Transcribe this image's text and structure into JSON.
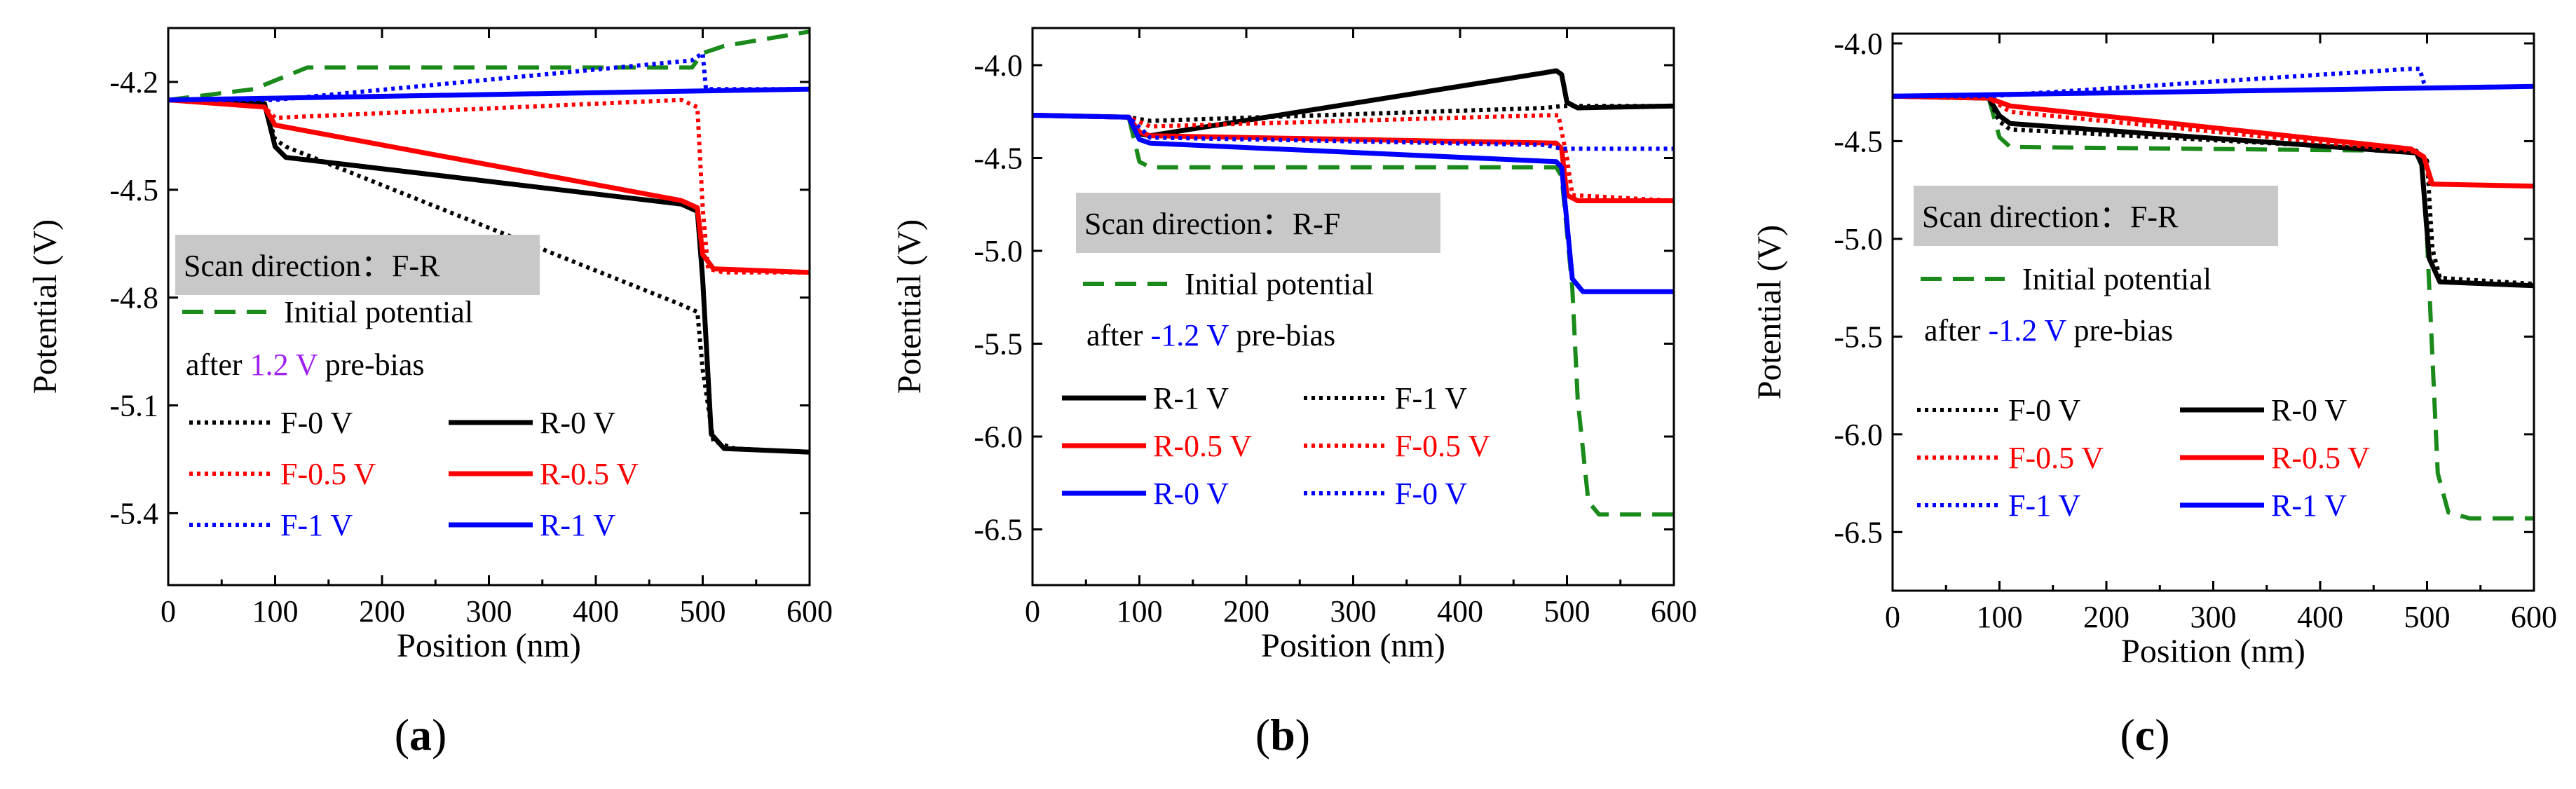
{
  "chart_data": [
    {
      "id": "a",
      "type": "line",
      "caption": "(a)",
      "caption_parts": [
        "(",
        "a",
        ")"
      ],
      "xlabel": "Position (nm)",
      "ylabel": "Potential (V)",
      "xlim": [
        0,
        600
      ],
      "ylim": [
        -5.6,
        -4.05
      ],
      "xticks": [
        "0",
        "100",
        "200",
        "300",
        "400",
        "500",
        "600"
      ],
      "yticks": [
        {
          "label": "-4.2",
          "value": -4.2
        },
        {
          "label": "-4.5",
          "value": -4.5
        },
        {
          "label": "-4.8",
          "value": -4.8
        },
        {
          "label": "-5.1",
          "value": -5.1
        },
        {
          "label": "-5.4",
          "value": -5.4
        }
      ],
      "annotation": {
        "scan": "Scan direction：F-R",
        "initial": "Initial potential",
        "bias_prefix": "after ",
        "bias_value": "1.2 V",
        "bias_suffix": " pre-bias",
        "bias_color": "#a020f0"
      },
      "series": [
        {
          "name": "Initial potential",
          "color": "#1a8a1a",
          "style": "dash",
          "points": [
            [
              0,
              -4.25
            ],
            [
              80,
              -4.22
            ],
            [
              130,
              -4.16
            ],
            [
              490,
              -4.16
            ],
            [
              500,
              -4.12
            ],
            [
              520,
              -4.1
            ],
            [
              600,
              -4.06
            ]
          ]
        },
        {
          "name": "F-0 V",
          "color": "#000000",
          "style": "dot",
          "points": [
            [
              0,
              -4.25
            ],
            [
              90,
              -4.26
            ],
            [
              100,
              -4.36
            ],
            [
              110,
              -4.38
            ],
            [
              480,
              -4.82
            ],
            [
              495,
              -4.84
            ],
            [
              500,
              -5.0
            ],
            [
              510,
              -5.2
            ],
            [
              530,
              -5.22
            ],
            [
              600,
              -5.23
            ]
          ]
        },
        {
          "name": "R-0 V",
          "color": "#000000",
          "style": "solid",
          "points": [
            [
              0,
              -4.25
            ],
            [
              90,
              -4.26
            ],
            [
              100,
              -4.38
            ],
            [
              110,
              -4.41
            ],
            [
              480,
              -4.54
            ],
            [
              495,
              -4.56
            ],
            [
              500,
              -4.75
            ],
            [
              508,
              -5.18
            ],
            [
              520,
              -5.22
            ],
            [
              600,
              -5.23
            ]
          ]
        },
        {
          "name": "F-0.5 V",
          "color": "#ff0000",
          "style": "dot",
          "points": [
            [
              0,
              -4.25
            ],
            [
              90,
              -4.27
            ],
            [
              100,
              -4.3
            ],
            [
              480,
              -4.25
            ],
            [
              495,
              -4.27
            ],
            [
              500,
              -4.55
            ],
            [
              505,
              -4.72
            ],
            [
              520,
              -4.73
            ],
            [
              600,
              -4.73
            ]
          ]
        },
        {
          "name": "R-0.5 V",
          "color": "#ff0000",
          "style": "solid",
          "points": [
            [
              0,
              -4.25
            ],
            [
              90,
              -4.27
            ],
            [
              100,
              -4.32
            ],
            [
              480,
              -4.53
            ],
            [
              495,
              -4.55
            ],
            [
              500,
              -4.68
            ],
            [
              510,
              -4.72
            ],
            [
              600,
              -4.73
            ]
          ]
        },
        {
          "name": "F-1 V",
          "color": "#0000ff",
          "style": "dot",
          "points": [
            [
              0,
              -4.25
            ],
            [
              100,
              -4.25
            ],
            [
              490,
              -4.14
            ],
            [
              500,
              -4.12
            ],
            [
              503,
              -4.22
            ],
            [
              600,
              -4.22
            ]
          ]
        },
        {
          "name": "R-1 V",
          "color": "#0000ff",
          "style": "solid",
          "points": [
            [
              0,
              -4.25
            ],
            [
              600,
              -4.22
            ]
          ]
        }
      ],
      "legend_rows": [
        [
          "F-0 V",
          "R-0 V"
        ],
        [
          "F-0.5 V",
          "R-0.5 V"
        ],
        [
          "F-1 V",
          "R-1 V"
        ]
      ]
    },
    {
      "id": "b",
      "type": "line",
      "caption": "(b)",
      "caption_parts": [
        "(",
        "b",
        ")"
      ],
      "xlabel": "Position (nm)",
      "ylabel": "Potential (V)",
      "xlim": [
        0,
        600
      ],
      "ylim": [
        -6.8,
        -3.8
      ],
      "xticks": [
        "0",
        "100",
        "200",
        "300",
        "400",
        "500",
        "600"
      ],
      "yticks": [
        {
          "label": "-4.0",
          "value": -4.0
        },
        {
          "label": "-4.5",
          "value": -4.5
        },
        {
          "label": "-5.0",
          "value": -5.0
        },
        {
          "label": "-5.5",
          "value": -5.5
        },
        {
          "label": "-6.0",
          "value": -6.0
        },
        {
          "label": "-6.5",
          "value": -6.5
        }
      ],
      "annotation": {
        "scan": "Scan direction：R-F",
        "initial": "Initial potential",
        "bias_prefix": "after ",
        "bias_value": "-1.2 V",
        "bias_suffix": " pre-bias",
        "bias_color": "#0000ff"
      },
      "series": [
        {
          "name": "Initial potential",
          "color": "#1a8a1a",
          "style": "dash",
          "points": [
            [
              0,
              -4.27
            ],
            [
              90,
              -4.28
            ],
            [
              100,
              -4.52
            ],
            [
              110,
              -4.55
            ],
            [
              490,
              -4.55
            ],
            [
              495,
              -4.6
            ],
            [
              500,
              -4.9
            ],
            [
              505,
              -5.2
            ],
            [
              510,
              -5.8
            ],
            [
              520,
              -6.35
            ],
            [
              530,
              -6.42
            ],
            [
              600,
              -6.42
            ]
          ]
        },
        {
          "name": "R-1 V",
          "color": "#000000",
          "style": "solid",
          "points": [
            [
              0,
              -4.27
            ],
            [
              90,
              -4.28
            ],
            [
              100,
              -4.37
            ],
            [
              110,
              -4.38
            ],
            [
              480,
              -4.04
            ],
            [
              490,
              -4.03
            ],
            [
              495,
              -4.05
            ],
            [
              500,
              -4.2
            ],
            [
              510,
              -4.23
            ],
            [
              600,
              -4.22
            ]
          ]
        },
        {
          "name": "F-1 V",
          "color": "#000000",
          "style": "dot",
          "points": [
            [
              0,
              -4.27
            ],
            [
              90,
              -4.28
            ],
            [
              110,
              -4.3
            ],
            [
              480,
              -4.23
            ],
            [
              495,
              -4.22
            ],
            [
              600,
              -4.22
            ]
          ]
        },
        {
          "name": "R-0.5 V",
          "color": "#ff0000",
          "style": "solid",
          "points": [
            [
              0,
              -4.27
            ],
            [
              90,
              -4.28
            ],
            [
              100,
              -4.36
            ],
            [
              110,
              -4.38
            ],
            [
              490,
              -4.42
            ],
            [
              495,
              -4.45
            ],
            [
              500,
              -4.7
            ],
            [
              510,
              -4.73
            ],
            [
              600,
              -4.73
            ]
          ]
        },
        {
          "name": "F-0.5 V",
          "color": "#ff0000",
          "style": "dot",
          "points": [
            [
              0,
              -4.27
            ],
            [
              90,
              -4.28
            ],
            [
              110,
              -4.33
            ],
            [
              480,
              -4.27
            ],
            [
              492,
              -4.27
            ],
            [
              500,
              -4.5
            ],
            [
              505,
              -4.7
            ],
            [
              600,
              -4.73
            ]
          ]
        },
        {
          "name": "R-0 V",
          "color": "#0000ff",
          "style": "solid",
          "points": [
            [
              0,
              -4.27
            ],
            [
              90,
              -4.28
            ],
            [
              100,
              -4.4
            ],
            [
              110,
              -4.42
            ],
            [
              490,
              -4.52
            ],
            [
              495,
              -4.55
            ],
            [
              505,
              -5.15
            ],
            [
              515,
              -5.22
            ],
            [
              600,
              -5.22
            ]
          ]
        },
        {
          "name": "F-0 V",
          "color": "#0000ff",
          "style": "dot",
          "points": [
            [
              0,
              -4.27
            ],
            [
              90,
              -4.28
            ],
            [
              110,
              -4.39
            ],
            [
              480,
              -4.43
            ],
            [
              495,
              -4.45
            ],
            [
              600,
              -4.45
            ]
          ]
        }
      ],
      "legend_rows": [
        [
          "R-1 V",
          "F-1 V"
        ],
        [
          "R-0.5 V",
          "F-0.5 V"
        ],
        [
          "R-0 V",
          "F-0 V"
        ]
      ]
    },
    {
      "id": "c",
      "type": "line",
      "caption": "(c)",
      "caption_parts": [
        "(",
        "c",
        ")"
      ],
      "xlabel": "Position (nm)",
      "ylabel": "Potential (V)",
      "xlim": [
        0,
        600
      ],
      "ylim": [
        -6.8,
        -3.95
      ],
      "xticks": [
        "0",
        "100",
        "200",
        "300",
        "400",
        "500",
        "600"
      ],
      "yticks": [
        {
          "label": "-4.0",
          "value": -4.0
        },
        {
          "label": "-4.5",
          "value": -4.5
        },
        {
          "label": "-5.0",
          "value": -5.0
        },
        {
          "label": "-5.5",
          "value": -5.5
        },
        {
          "label": "-6.0",
          "value": -6.0
        },
        {
          "label": "-6.5",
          "value": -6.5
        }
      ],
      "annotation": {
        "scan": "Scan direction：F-R",
        "initial": "Initial potential",
        "bias_prefix": "after ",
        "bias_value": "-1.2 V",
        "bias_suffix": " pre-bias",
        "bias_color": "#0000ff"
      },
      "series": [
        {
          "name": "Initial potential",
          "color": "#1a8a1a",
          "style": "dash",
          "points": [
            [
              0,
              -4.27
            ],
            [
              90,
              -4.28
            ],
            [
              100,
              -4.48
            ],
            [
              110,
              -4.53
            ],
            [
              490,
              -4.55
            ],
            [
              495,
              -4.6
            ],
            [
              500,
              -5.0
            ],
            [
              505,
              -5.6
            ],
            [
              510,
              -6.2
            ],
            [
              520,
              -6.4
            ],
            [
              540,
              -6.43
            ],
            [
              600,
              -6.43
            ]
          ]
        },
        {
          "name": "F-0 V",
          "color": "#000000",
          "style": "dot",
          "points": [
            [
              0,
              -4.27
            ],
            [
              90,
              -4.28
            ],
            [
              100,
              -4.4
            ],
            [
              110,
              -4.44
            ],
            [
              490,
              -4.55
            ],
            [
              500,
              -4.6
            ],
            [
              505,
              -5.05
            ],
            [
              512,
              -5.2
            ],
            [
              600,
              -5.23
            ]
          ]
        },
        {
          "name": "R-0 V",
          "color": "#000000",
          "style": "solid",
          "points": [
            [
              0,
              -4.27
            ],
            [
              90,
              -4.28
            ],
            [
              100,
              -4.37
            ],
            [
              110,
              -4.41
            ],
            [
              490,
              -4.56
            ],
            [
              495,
              -4.62
            ],
            [
              502,
              -5.1
            ],
            [
              512,
              -5.22
            ],
            [
              600,
              -5.24
            ]
          ]
        },
        {
          "name": "F-0.5 V",
          "color": "#ff0000",
          "style": "dot",
          "points": [
            [
              0,
              -4.27
            ],
            [
              90,
              -4.28
            ],
            [
              110,
              -4.35
            ],
            [
              485,
              -4.55
            ],
            [
              497,
              -4.58
            ],
            [
              503,
              -4.72
            ],
            [
              600,
              -4.73
            ]
          ]
        },
        {
          "name": "R-0.5 V",
          "color": "#ff0000",
          "style": "solid",
          "points": [
            [
              0,
              -4.27
            ],
            [
              90,
              -4.28
            ],
            [
              110,
              -4.32
            ],
            [
              485,
              -4.54
            ],
            [
              497,
              -4.58
            ],
            [
              505,
              -4.72
            ],
            [
              600,
              -4.73
            ]
          ]
        },
        {
          "name": "F-1 V",
          "color": "#0000ff",
          "style": "dot",
          "points": [
            [
              0,
              -4.27
            ],
            [
              90,
              -4.27
            ],
            [
              485,
              -4.13
            ],
            [
              493,
              -4.13
            ],
            [
              497,
              -4.2
            ],
            [
              500,
              -4.23
            ],
            [
              600,
              -4.22
            ]
          ]
        },
        {
          "name": "R-1 V",
          "color": "#0000ff",
          "style": "solid",
          "points": [
            [
              0,
              -4.27
            ],
            [
              600,
              -4.22
            ]
          ]
        }
      ],
      "legend_rows": [
        [
          "F-0 V",
          "R-0 V"
        ],
        [
          "F-0.5 V",
          "R-0.5 V"
        ],
        [
          "F-1 V",
          "R-1 V"
        ]
      ]
    }
  ]
}
